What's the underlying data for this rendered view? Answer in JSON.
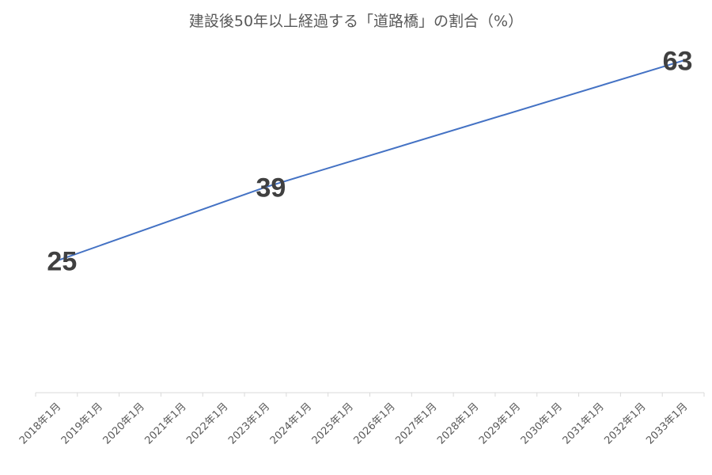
{
  "chart_data": {
    "type": "line",
    "title": "建設後50年以上経過する「道路橋」の割合（%）",
    "categories": [
      "2018年1月",
      "2019年1月",
      "2020年1月",
      "2021年1月",
      "2022年1月",
      "2023年1月",
      "2024年1月",
      "2025年1月",
      "2026年1月",
      "2027年1月",
      "2028年1月",
      "2029年1月",
      "2030年1月",
      "2031年1月",
      "2032年1月",
      "2033年1月"
    ],
    "series": [
      {
        "color": "#4472c4",
        "points": [
          {
            "category": "2018年1月",
            "value": 25
          },
          {
            "category": "2023年1月",
            "value": 39
          },
          {
            "category": "2033年1月",
            "value": 63
          }
        ]
      }
    ],
    "data_labels": [
      "25",
      "39",
      "63"
    ],
    "ylim": [
      0,
      70
    ],
    "grid": false,
    "legend": "none",
    "colors": {
      "line": "#4472c4",
      "axis": "#d9d9d9",
      "text": "#595959",
      "label": "#404040"
    }
  }
}
